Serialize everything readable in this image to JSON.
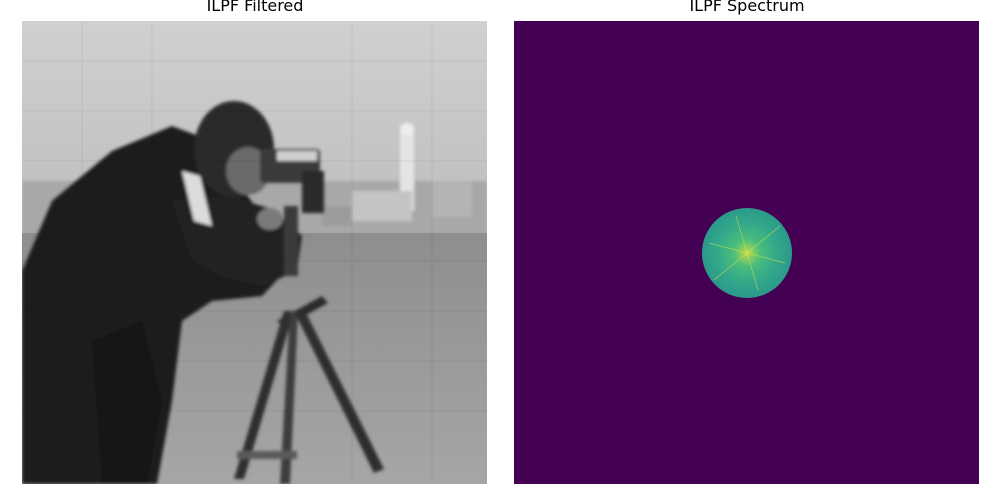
{
  "panels": [
    {
      "title": "ILPF Filtered"
    },
    {
      "title": "ILPF Spectrum"
    }
  ],
  "colors": {
    "spectrum_background": "#440154",
    "spectrum_disc": "#2a9a8a",
    "spectrum_center": "#b8d94a",
    "photo_sky": "#b9b9b9",
    "photo_ground": "#9a9a9a",
    "photo_subject": "#1e1e1e"
  }
}
